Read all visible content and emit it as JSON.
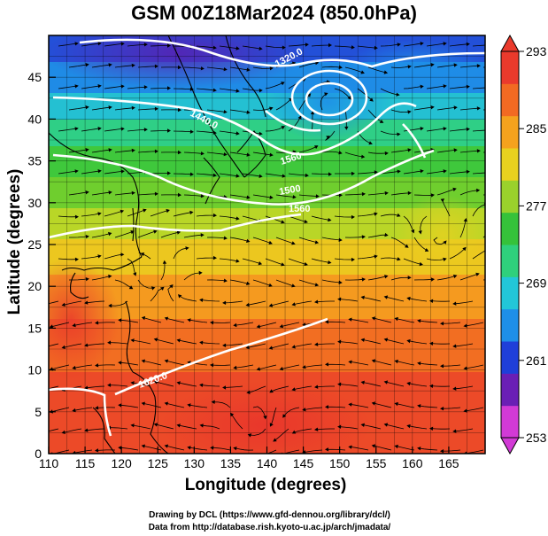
{
  "title": "GSM 00Z18Mar2024 (850.0hPa)",
  "x_axis": {
    "label": "Longitude (degrees)",
    "range": [
      110,
      170
    ],
    "ticks": [
      110,
      115,
      120,
      125,
      130,
      135,
      140,
      145,
      150,
      155,
      160,
      165
    ]
  },
  "y_axis": {
    "label": "Latitude  (degrees)",
    "range": [
      0,
      50
    ],
    "ticks": [
      0,
      5,
      10,
      15,
      20,
      25,
      30,
      35,
      40,
      45
    ]
  },
  "colorbar": {
    "min": 253,
    "max": 293,
    "tick_values": [
      253,
      261,
      269,
      277,
      285,
      293
    ],
    "colors": [
      "#d23ad6",
      "#6a1fb5",
      "#1f3fd9",
      "#1e8fe8",
      "#22c6d8",
      "#2fd07c",
      "#35c23a",
      "#9ad12c",
      "#e8d11f",
      "#f5a21d",
      "#f26a22",
      "#ea3a2c"
    ]
  },
  "contours": {
    "labels": [
      "1320.0",
      "1440.0",
      "1560",
      "1500",
      "1560",
      "1620.0"
    ]
  },
  "credits": {
    "drawing": "Drawing by DCL (https://www.gfd-dennou.org/library/dcl/)",
    "data": "Data from http://database.rish.kyoto-u.ac.jp/arch/jmadata/"
  }
}
